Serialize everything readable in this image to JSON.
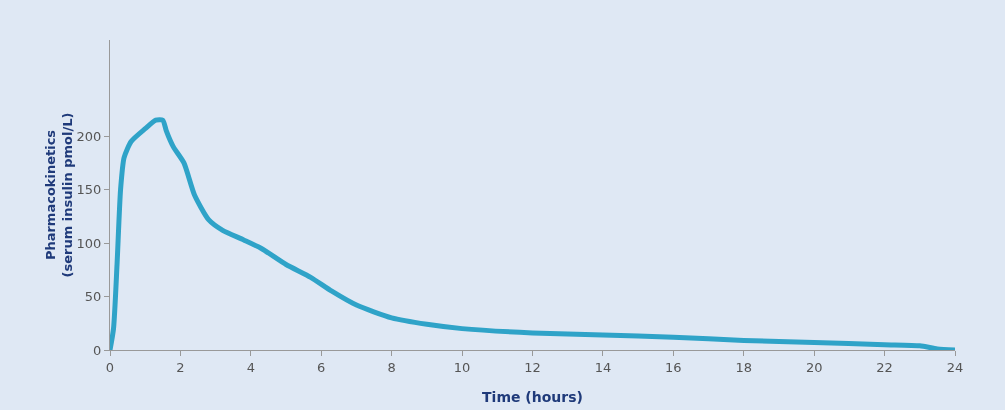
{
  "chart_data": {
    "type": "line",
    "xlabel": "Time (hours)",
    "ylabel": "Pharmacokinetics\n(serum insulin pmol/L)",
    "x": [
      0,
      0.1,
      0.2,
      0.3,
      0.4,
      0.6,
      1,
      1.3,
      1.5,
      1.6,
      1.8,
      2.1,
      2.4,
      2.8,
      3.2,
      3.8,
      4.3,
      5,
      5.7,
      6.3,
      7,
      8,
      9,
      10,
      12,
      14,
      16,
      18,
      20,
      22,
      23,
      23.5,
      24
    ],
    "series": [
      {
        "color": "#2fa3c8",
        "values": [
          0,
          20,
          80,
          150,
          180,
          195,
          207,
          215,
          215,
          205,
          190,
          175,
          145,
          122,
          112,
          103,
          95,
          80,
          68,
          55,
          42,
          30,
          24,
          20,
          16,
          14,
          12,
          9,
          7,
          5,
          4,
          1,
          0
        ]
      }
    ],
    "xlim": [
      0,
      24
    ],
    "xticks": [
      0,
      2,
      4,
      6,
      8,
      10,
      12,
      14,
      16,
      18,
      20,
      22,
      24
    ],
    "ylim": [
      0,
      290
    ],
    "yticks": [
      0,
      50,
      100,
      150,
      200
    ],
    "grid": false,
    "marker": "none",
    "line_style": "solid"
  }
}
